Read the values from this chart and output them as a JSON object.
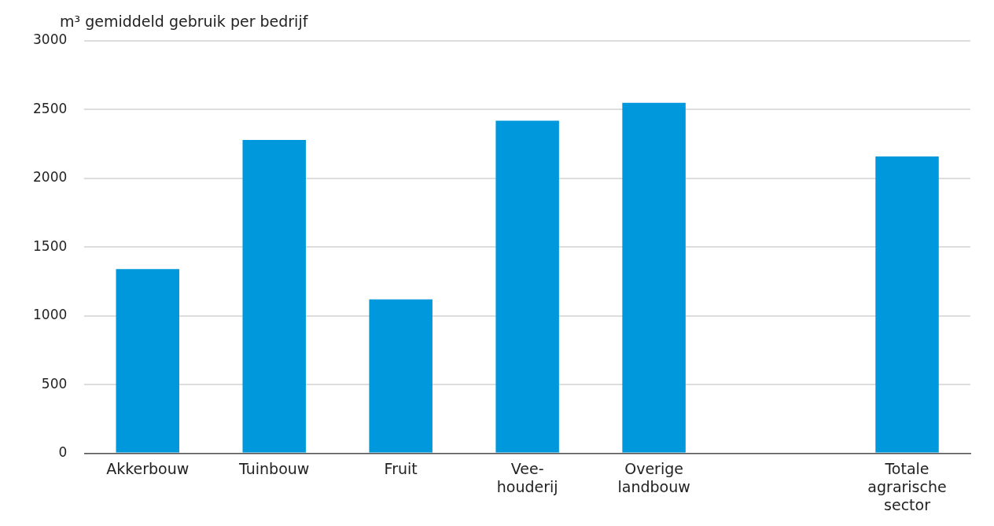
{
  "chart_data": {
    "type": "bar",
    "ylabel": "m³ gemiddeld gebruik per bedrijf",
    "categories": [
      "Akkerbouw",
      "Tuinbouw",
      "Fruit",
      "Vee-\nhouderij",
      "Overige\nlandbouw",
      null,
      "Totale\nagrarische\nsector"
    ],
    "values": [
      1340,
      2280,
      1120,
      2420,
      2550,
      null,
      2160
    ],
    "color": "#0098dc",
    "ylim": [
      0,
      3000
    ],
    "yticks": [
      0,
      500,
      1000,
      1500,
      2000,
      2500,
      3000
    ],
    "grid": "y",
    "legend": false
  }
}
